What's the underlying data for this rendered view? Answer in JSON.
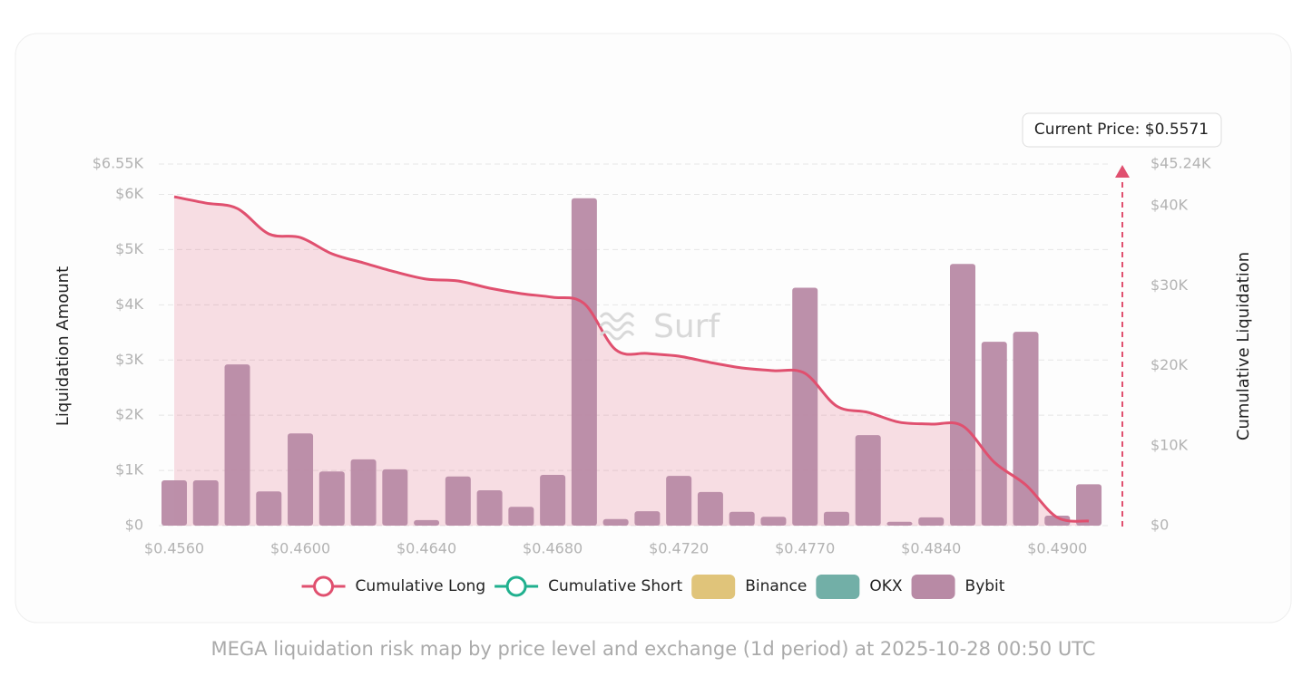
{
  "chart_data": {
    "type": "bar",
    "caption": "MEGA liquidation risk map by price level and exchange (1d period) at 2025-10-28 00:50 UTC",
    "watermark": "Surf",
    "y_label": "Liquidation Amount",
    "y2_label": "Cumulative Liquidation",
    "annotation": "Current Price: $0.5571",
    "categories": [
      "$0.4560",
      null,
      null,
      null,
      "$0.4600",
      null,
      null,
      null,
      "$0.4640",
      null,
      null,
      null,
      "$0.4680",
      null,
      null,
      null,
      "$0.4720",
      null,
      null,
      null,
      "$0.4770",
      null,
      null,
      null,
      "$0.4840",
      null,
      null,
      null,
      "$0.4900",
      null
    ],
    "ylim": [
      0,
      6550
    ],
    "yticks": [
      {
        "value": 0,
        "label": "$0"
      },
      {
        "value": 1000,
        "label": "$1K"
      },
      {
        "value": 2000,
        "label": "$2K"
      },
      {
        "value": 3000,
        "label": "$3K"
      },
      {
        "value": 4000,
        "label": "$4K"
      },
      {
        "value": 5000,
        "label": "$5K"
      },
      {
        "value": 6000,
        "label": "$6K"
      },
      {
        "value": 6550,
        "label": "$6.55K"
      }
    ],
    "y2lim": [
      0,
      45240
    ],
    "y2ticks": [
      {
        "value": 0,
        "label": "$0"
      },
      {
        "value": 10000,
        "label": "$10K"
      },
      {
        "value": 20000,
        "label": "$20K"
      },
      {
        "value": 30000,
        "label": "$30K"
      },
      {
        "value": 40000,
        "label": "$40K"
      },
      {
        "value": 45240,
        "label": "$45.24K"
      }
    ],
    "grid": true,
    "stacked": true,
    "series": [
      {
        "name": "Cumulative Long",
        "type": "line",
        "axis": "y2",
        "color": "#e0506f",
        "values": [
          41150,
          40360,
          39680,
          36500,
          36050,
          34010,
          32880,
          31750,
          30840,
          30610,
          29710,
          29030,
          28570,
          27780,
          22000,
          21540,
          21200,
          20410,
          19730,
          19390,
          19050,
          14970,
          14170,
          12930,
          12700,
          12470,
          7940,
          5100,
          1020,
          570
        ]
      },
      {
        "name": "Cumulative Short",
        "type": "line",
        "axis": "y2",
        "color": "#20b08e",
        "values": [
          null,
          null,
          null,
          null,
          null,
          null,
          null,
          null,
          null,
          null,
          null,
          null,
          null,
          null,
          null,
          null,
          null,
          null,
          null,
          null,
          null,
          null,
          null,
          null,
          null,
          null,
          null,
          null,
          null,
          null
        ]
      },
      {
        "name": "Binance",
        "type": "bar",
        "color": "#e0c47a",
        "values": [
          0,
          0,
          0,
          0,
          0,
          0,
          0,
          0,
          0,
          0,
          0,
          0,
          0,
          0,
          0,
          0,
          0,
          0,
          0,
          0,
          0,
          0,
          0,
          0,
          0,
          0,
          0,
          0,
          0,
          0
        ]
      },
      {
        "name": "OKX",
        "type": "bar",
        "color": "#72afa7",
        "values": [
          0,
          0,
          0,
          0,
          0,
          0,
          0,
          0,
          0,
          0,
          0,
          0,
          0,
          0,
          0,
          0,
          0,
          0,
          0,
          0,
          0,
          0,
          0,
          0,
          0,
          0,
          0,
          0,
          0,
          0
        ]
      },
      {
        "name": "Bybit",
        "type": "bar",
        "color": "#b88aa5",
        "values": [
          820,
          820,
          2920,
          620,
          1670,
          980,
          1200,
          1020,
          100,
          890,
          640,
          340,
          920,
          5930,
          120,
          260,
          900,
          610,
          250,
          160,
          4310,
          250,
          1640,
          70,
          150,
          4740,
          3330,
          3510,
          180,
          750
        ]
      }
    ]
  }
}
